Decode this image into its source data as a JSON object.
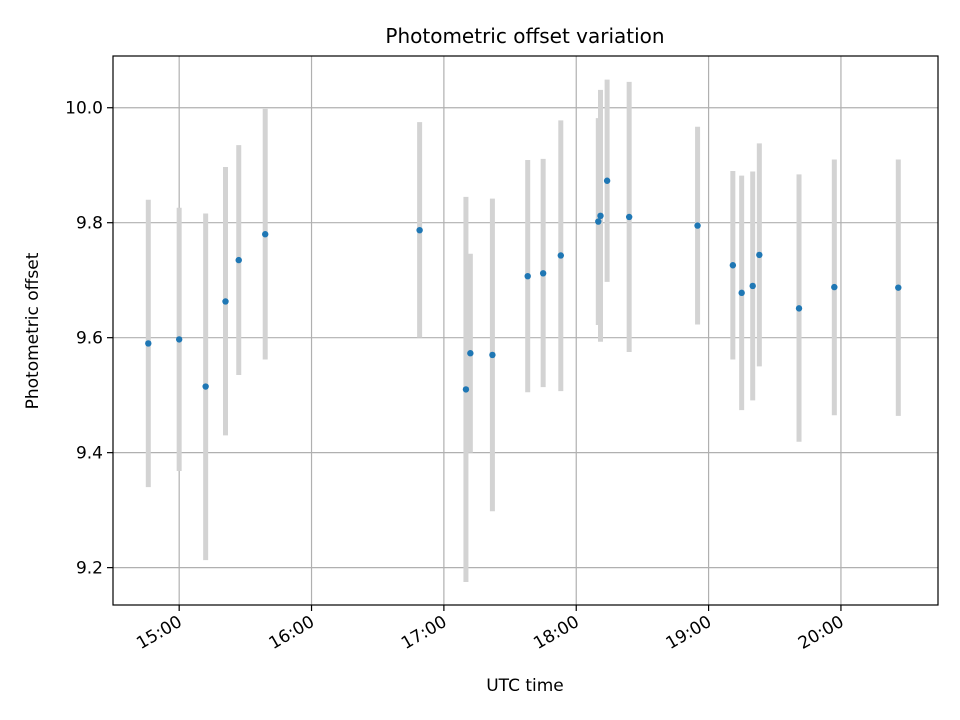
{
  "chart_data": {
    "type": "scatter",
    "title": "Photometric offset variation",
    "xlabel": "UTC time",
    "ylabel": "Photometric offset",
    "x_ticks": [
      "15:00",
      "16:00",
      "17:00",
      "18:00",
      "19:00",
      "20:00"
    ],
    "y_ticks": [
      "9.2",
      "9.4",
      "9.6",
      "9.8",
      "10.0"
    ],
    "xlim": [
      "14:30",
      "20:44"
    ],
    "ylim": [
      9.135,
      10.09
    ],
    "grid": true,
    "colors": {
      "marker": "#1f77b4",
      "errorbar": "#d3d3d3",
      "grid": "#b0b0b0"
    },
    "points": [
      {
        "x": "14:46",
        "y": 9.59,
        "ylo": 9.34,
        "yhi": 9.84
      },
      {
        "x": "15:00",
        "y": 9.597,
        "ylo": 9.368,
        "yhi": 9.826
      },
      {
        "x": "15:12",
        "y": 9.515,
        "ylo": 9.213,
        "yhi": 9.816
      },
      {
        "x": "15:21",
        "y": 9.663,
        "ylo": 9.43,
        "yhi": 9.897
      },
      {
        "x": "15:27",
        "y": 9.735,
        "ylo": 9.535,
        "yhi": 9.935
      },
      {
        "x": "15:39",
        "y": 9.78,
        "ylo": 9.562,
        "yhi": 9.998
      },
      {
        "x": "16:49",
        "y": 9.787,
        "ylo": 9.6,
        "yhi": 9.975
      },
      {
        "x": "17:10",
        "y": 9.51,
        "ylo": 9.175,
        "yhi": 9.845
      },
      {
        "x": "17:12",
        "y": 9.573,
        "ylo": 9.4,
        "yhi": 9.746
      },
      {
        "x": "17:22",
        "y": 9.57,
        "ylo": 9.298,
        "yhi": 9.842
      },
      {
        "x": "17:38",
        "y": 9.707,
        "ylo": 9.505,
        "yhi": 9.909
      },
      {
        "x": "17:45",
        "y": 9.712,
        "ylo": 9.514,
        "yhi": 9.911
      },
      {
        "x": "17:53",
        "y": 9.743,
        "ylo": 9.507,
        "yhi": 9.978
      },
      {
        "x": "18:10",
        "y": 9.802,
        "ylo": 9.622,
        "yhi": 9.982
      },
      {
        "x": "18:11",
        "y": 9.812,
        "ylo": 9.593,
        "yhi": 10.031
      },
      {
        "x": "18:14",
        "y": 9.873,
        "ylo": 9.697,
        "yhi": 10.049
      },
      {
        "x": "18:24",
        "y": 9.81,
        "ylo": 9.575,
        "yhi": 10.045
      },
      {
        "x": "18:55",
        "y": 9.795,
        "ylo": 9.623,
        "yhi": 9.967
      },
      {
        "x": "19:11",
        "y": 9.726,
        "ylo": 9.562,
        "yhi": 9.89
      },
      {
        "x": "19:15",
        "y": 9.678,
        "ylo": 9.474,
        "yhi": 9.882
      },
      {
        "x": "19:20",
        "y": 9.69,
        "ylo": 9.491,
        "yhi": 9.889
      },
      {
        "x": "19:23",
        "y": 9.744,
        "ylo": 9.55,
        "yhi": 9.938
      },
      {
        "x": "19:41",
        "y": 9.651,
        "ylo": 9.419,
        "yhi": 9.884
      },
      {
        "x": "19:57",
        "y": 9.688,
        "ylo": 9.465,
        "yhi": 9.91
      },
      {
        "x": "20:26",
        "y": 9.687,
        "ylo": 9.464,
        "yhi": 9.91
      }
    ]
  }
}
